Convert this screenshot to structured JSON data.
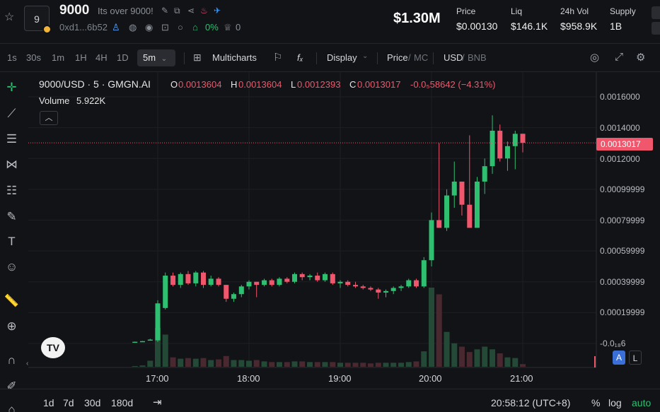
{
  "header": {
    "token_icon_text": "9",
    "token_name": "9000",
    "token_description": "Its over 9000!",
    "address": "0xd1...6b52",
    "holder_change_pct": "0%",
    "crown_count": "0",
    "market_cap": "$1.30M",
    "stats": [
      {
        "label": "Price",
        "value": "$0.00130"
      },
      {
        "label": "Liq",
        "value": "$146.1K"
      },
      {
        "label": "24h Vol",
        "value": "$958.9K"
      },
      {
        "label": "Supply",
        "value": "1B"
      }
    ]
  },
  "toolbar": {
    "timeframes": [
      "1s",
      "30s",
      "1m",
      "1H",
      "4H",
      "1D"
    ],
    "active_timeframe": "5m",
    "multicharts_label": "Multicharts",
    "fx_label": "fₓ",
    "display_label": "Display",
    "price_label": "Price",
    "mc_label": "MC",
    "usd_label": "USD",
    "bnb_label": "BNB"
  },
  "legend": {
    "symbol": "9000/USD · 5 · GMGN.AI",
    "o_label": "O",
    "o_value": "0.0013604",
    "h_label": "H",
    "h_value": "0.0013604",
    "l_label": "L",
    "l_value": "0.0012393",
    "c_label": "C",
    "c_value": "0.0013017",
    "change": "-0.0₅58642 (−4.31%)",
    "volume_label": "Volume",
    "volume_value": "5.922K"
  },
  "chart_data": {
    "type": "candlestick",
    "symbol": "9000/USD",
    "interval": "5",
    "current_price_label": "0.0013017",
    "y_ticks": [
      "0.0016000",
      "0.0014000",
      "0.0012000",
      "0.00099999",
      "0.00079999",
      "0.00059999",
      "0.00039999",
      "0.00019999",
      "-0.0₁₈6"
    ],
    "y_tick_values": [
      0.0016,
      0.0014,
      0.0012,
      0.001,
      0.0008,
      0.0006,
      0.0004,
      0.0002,
      0.0
    ],
    "ylim": [
      -6e-05,
      0.0018
    ],
    "x_ticks": [
      "17:00",
      "18:00",
      "19:00",
      "20:00",
      "21:00"
    ],
    "x_tick_values": [
      17,
      18,
      19,
      20,
      21
    ],
    "xlim": [
      15.62,
      21.81
    ],
    "candles": [
      {
        "t": 16.75,
        "o": 1e-05,
        "h": 1.2e-05,
        "l": 8e-06,
        "c": 1.1e-05,
        "v": 0.001
      },
      {
        "t": 16.833,
        "o": 1.2e-05,
        "h": 1.6e-05,
        "l": 1e-05,
        "c": 1.5e-05,
        "v": 0.002
      },
      {
        "t": 16.917,
        "o": 2e-05,
        "h": 3e-05,
        "l": 1.8e-05,
        "c": 2.5e-05,
        "v": 0.009
      },
      {
        "t": 17.0,
        "o": 2e-05,
        "h": 0.00028,
        "l": 1e-05,
        "c": 0.00026,
        "v": 0.058
      },
      {
        "t": 17.083,
        "o": 0.00023,
        "h": 0.00046,
        "l": 0.00022,
        "c": 0.00044,
        "v": 0.048
      },
      {
        "t": 17.167,
        "o": 0.00044,
        "h": 0.00046,
        "l": 0.00037,
        "c": 0.00038,
        "v": 0.014
      },
      {
        "t": 17.25,
        "o": 0.00038,
        "h": 0.00046,
        "l": 0.00036,
        "c": 0.00045,
        "v": 0.012
      },
      {
        "t": 17.333,
        "o": 0.00045,
        "h": 0.00047,
        "l": 0.00038,
        "c": 0.00039,
        "v": 0.013
      },
      {
        "t": 17.417,
        "o": 0.00039,
        "h": 0.00047,
        "l": 0.00037,
        "c": 0.00046,
        "v": 0.012
      },
      {
        "t": 17.5,
        "o": 0.00046,
        "h": 0.00047,
        "l": 0.00036,
        "c": 0.00038,
        "v": 0.013
      },
      {
        "t": 17.583,
        "o": 0.00038,
        "h": 0.00044,
        "l": 0.00037,
        "c": 0.00042,
        "v": 0.01
      },
      {
        "t": 17.667,
        "o": 0.00042,
        "h": 0.00043,
        "l": 0.00037,
        "c": 0.00038,
        "v": 0.011
      },
      {
        "t": 17.75,
        "o": 0.00038,
        "h": 0.00038,
        "l": 0.00027,
        "c": 0.00029,
        "v": 0.016
      },
      {
        "t": 17.833,
        "o": 0.00029,
        "h": 0.00033,
        "l": 0.00027,
        "c": 0.00032,
        "v": 0.01
      },
      {
        "t": 17.917,
        "o": 0.00032,
        "h": 0.00038,
        "l": 0.0003,
        "c": 0.00037,
        "v": 0.01
      },
      {
        "t": 18.0,
        "o": 0.00037,
        "h": 0.00041,
        "l": 0.00035,
        "c": 0.0004,
        "v": 0.009
      },
      {
        "t": 18.083,
        "o": 0.0004,
        "h": 0.0004,
        "l": 0.0003,
        "c": 0.00038,
        "v": 0.01
      },
      {
        "t": 18.167,
        "o": 0.00038,
        "h": 0.00042,
        "l": 0.00037,
        "c": 0.00041,
        "v": 0.008
      },
      {
        "t": 18.25,
        "o": 0.00041,
        "h": 0.00042,
        "l": 0.00037,
        "c": 0.00038,
        "v": 0.007
      },
      {
        "t": 18.333,
        "o": 0.00038,
        "h": 0.00043,
        "l": 0.00037,
        "c": 0.00042,
        "v": 0.007
      },
      {
        "t": 18.417,
        "o": 0.00042,
        "h": 0.00043,
        "l": 0.00039,
        "c": 0.0004,
        "v": 0.007
      },
      {
        "t": 18.5,
        "o": 0.0004,
        "h": 0.00046,
        "l": 0.00039,
        "c": 0.00045,
        "v": 0.008
      },
      {
        "t": 18.583,
        "o": 0.00045,
        "h": 0.00046,
        "l": 0.00041,
        "c": 0.00043,
        "v": 0.008
      },
      {
        "t": 18.667,
        "o": 0.00043,
        "h": 0.00045,
        "l": 0.00041,
        "c": 0.00044,
        "v": 0.007
      },
      {
        "t": 18.75,
        "o": 0.00044,
        "h": 0.00046,
        "l": 0.0004,
        "c": 0.00041,
        "v": 0.007
      },
      {
        "t": 18.833,
        "o": 0.00041,
        "h": 0.00046,
        "l": 0.0004,
        "c": 0.00045,
        "v": 0.007
      },
      {
        "t": 18.917,
        "o": 0.00045,
        "h": 0.00046,
        "l": 0.00038,
        "c": 0.00039,
        "v": 0.007
      },
      {
        "t": 19.0,
        "o": 0.00039,
        "h": 0.00041,
        "l": 0.00036,
        "c": 0.0004,
        "v": 0.006
      },
      {
        "t": 19.083,
        "o": 0.0004,
        "h": 0.00041,
        "l": 0.00037,
        "c": 0.00038,
        "v": 0.006
      },
      {
        "t": 19.167,
        "o": 0.00038,
        "h": 0.0004,
        "l": 0.00036,
        "c": 0.00037,
        "v": 0.006
      },
      {
        "t": 19.25,
        "o": 0.00037,
        "h": 0.00038,
        "l": 0.00035,
        "c": 0.00036,
        "v": 0.006
      },
      {
        "t": 19.333,
        "o": 0.00036,
        "h": 0.00037,
        "l": 0.00034,
        "c": 0.00035,
        "v": 0.005
      },
      {
        "t": 19.417,
        "o": 0.00035,
        "h": 0.00036,
        "l": 0.00029,
        "c": 0.00033,
        "v": 0.006
      },
      {
        "t": 19.5,
        "o": 0.00033,
        "h": 0.00035,
        "l": 0.0003,
        "c": 0.00034,
        "v": 0.006
      },
      {
        "t": 19.583,
        "o": 0.00034,
        "h": 0.00037,
        "l": 0.00032,
        "c": 0.00036,
        "v": 0.006
      },
      {
        "t": 19.667,
        "o": 0.00036,
        "h": 0.00038,
        "l": 0.00034,
        "c": 0.00037,
        "v": 0.006
      },
      {
        "t": 19.75,
        "o": 0.00037,
        "h": 0.00042,
        "l": 0.00036,
        "c": 0.00041,
        "v": 0.007
      },
      {
        "t": 19.833,
        "o": 0.00041,
        "h": 0.00042,
        "l": 0.00036,
        "c": 0.00037,
        "v": 0.008
      },
      {
        "t": 19.917,
        "o": 0.00037,
        "h": 0.00056,
        "l": 0.00036,
        "c": 0.00054,
        "v": 0.023
      },
      {
        "t": 20.0,
        "o": 0.00054,
        "h": 0.00085,
        "l": 0.0005,
        "c": 0.0008,
        "v": 0.118
      },
      {
        "t": 20.083,
        "o": 0.0008,
        "h": 0.0013,
        "l": 0.00075,
        "c": 0.00075,
        "v": 0.108
      },
      {
        "t": 20.167,
        "o": 0.00075,
        "h": 0.001,
        "l": 0.00073,
        "c": 0.00096,
        "v": 0.052
      },
      {
        "t": 20.25,
        "o": 0.00096,
        "h": 0.00118,
        "l": 0.00088,
        "c": 0.00105,
        "v": 0.035
      },
      {
        "t": 20.333,
        "o": 0.00105,
        "h": 0.00105,
        "l": 0.00083,
        "c": 0.0009,
        "v": 0.03
      },
      {
        "t": 20.417,
        "o": 0.0009,
        "h": 0.00135,
        "l": 0.00075,
        "c": 0.00075,
        "v": 0.022
      },
      {
        "t": 20.5,
        "o": 0.00075,
        "h": 0.00108,
        "l": 0.00075,
        "c": 0.00105,
        "v": 0.026
      },
      {
        "t": 20.583,
        "o": 0.00105,
        "h": 0.0012,
        "l": 0.00097,
        "c": 0.00115,
        "v": 0.03
      },
      {
        "t": 20.667,
        "o": 0.00115,
        "h": 0.00148,
        "l": 0.0011,
        "c": 0.00138,
        "v": 0.026
      },
      {
        "t": 20.75,
        "o": 0.00138,
        "h": 0.00142,
        "l": 0.00118,
        "c": 0.0012,
        "v": 0.02
      },
      {
        "t": 20.833,
        "o": 0.0012,
        "h": 0.00131,
        "l": 0.00112,
        "c": 0.00128,
        "v": 0.014
      },
      {
        "t": 20.917,
        "o": 0.00128,
        "h": 0.00138,
        "l": 0.00113,
        "c": 0.00136,
        "v": 0.013
      },
      {
        "t": 21.0,
        "o": 0.0013604,
        "h": 0.0013604,
        "l": 0.0012393,
        "c": 0.0013017,
        "v": 0.004
      }
    ],
    "colors": {
      "up": "#2fbf71",
      "down": "#f0576d",
      "up_vol": "#244a37",
      "down_vol": "#4a2830"
    }
  },
  "axis_buttons": {
    "a": "A",
    "l": "L"
  },
  "bottom": {
    "ranges": [
      "1d",
      "7d",
      "30d",
      "180d"
    ],
    "clock": "20:58:12 (UTC+8)",
    "percent": "%",
    "log": "log",
    "auto": "auto"
  }
}
